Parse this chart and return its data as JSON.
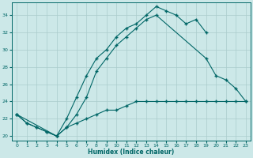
{
  "xlabel": "Humidex (Indice chaleur)",
  "bg_color": "#cce8e8",
  "grid_color": "#aacccc",
  "line_color": "#006666",
  "xlim": [
    -0.5,
    23.5
  ],
  "ylim": [
    19.5,
    35.5
  ],
  "yticks": [
    20,
    22,
    24,
    26,
    28,
    30,
    32,
    34
  ],
  "xticks": [
    0,
    1,
    2,
    3,
    4,
    5,
    6,
    7,
    8,
    9,
    10,
    11,
    12,
    13,
    14,
    15,
    16,
    17,
    18,
    19,
    20,
    21,
    22,
    23
  ],
  "line1_x": [
    0,
    1,
    2,
    3,
    4,
    5,
    6,
    7,
    8,
    9,
    10,
    11,
    12,
    13,
    14,
    15,
    16,
    17,
    18,
    19
  ],
  "line1_y": [
    22.5,
    21.5,
    21.0,
    20.5,
    20.0,
    22.0,
    24.5,
    27.0,
    29.0,
    30.0,
    31.5,
    32.5,
    33.0,
    34.0,
    35.0,
    34.5,
    34.0,
    33.0,
    33.5,
    32.0
  ],
  "line2_x": [
    0,
    1,
    2,
    3,
    4,
    5,
    6,
    7,
    8,
    9,
    10,
    11,
    12,
    13,
    14,
    19,
    20,
    21,
    22,
    23
  ],
  "line2_y": [
    22.5,
    21.5,
    21.0,
    20.5,
    20.0,
    21.0,
    22.5,
    24.5,
    27.5,
    29.0,
    30.5,
    31.5,
    32.5,
    33.5,
    34.0,
    29.0,
    27.0,
    26.5,
    25.5,
    24.0
  ],
  "line3_x": [
    0,
    4,
    5,
    6,
    7,
    8,
    9,
    10,
    11,
    12,
    13,
    14,
    15,
    16,
    17,
    18,
    19,
    20,
    21,
    22,
    23
  ],
  "line3_y": [
    22.5,
    20.0,
    21.0,
    21.5,
    22.0,
    22.5,
    23.0,
    23.0,
    23.5,
    24.0,
    24.0,
    24.0,
    24.0,
    24.0,
    24.0,
    24.0,
    24.0,
    24.0,
    24.0,
    24.0,
    24.0
  ]
}
